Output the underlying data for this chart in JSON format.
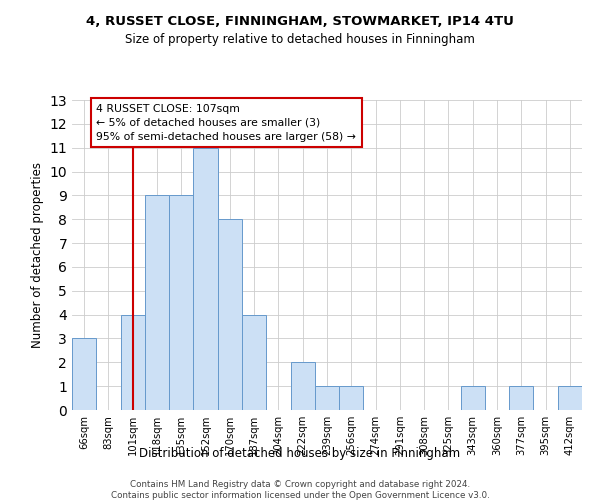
{
  "title1": "4, RUSSET CLOSE, FINNINGHAM, STOWMARKET, IP14 4TU",
  "title2": "Size of property relative to detached houses in Finningham",
  "xlabel": "Distribution of detached houses by size in Finningham",
  "ylabel": "Number of detached properties",
  "categories": [
    "66sqm",
    "83sqm",
    "101sqm",
    "118sqm",
    "135sqm",
    "152sqm",
    "170sqm",
    "187sqm",
    "204sqm",
    "222sqm",
    "239sqm",
    "256sqm",
    "274sqm",
    "291sqm",
    "308sqm",
    "325sqm",
    "343sqm",
    "360sqm",
    "377sqm",
    "395sqm",
    "412sqm"
  ],
  "values": [
    3,
    0,
    4,
    9,
    9,
    11,
    8,
    4,
    0,
    2,
    1,
    1,
    0,
    0,
    0,
    0,
    1,
    0,
    1,
    0,
    1
  ],
  "bar_color": "#cce0f5",
  "bar_edge_color": "#6699cc",
  "red_line_index": 2,
  "annotation_line1": "4 RUSSET CLOSE: 107sqm",
  "annotation_line2": "← 5% of detached houses are smaller (3)",
  "annotation_line3": "95% of semi-detached houses are larger (58) →",
  "annotation_box_color": "#ffffff",
  "annotation_box_edge": "#cc0000",
  "red_line_color": "#cc0000",
  "footer1": "Contains HM Land Registry data © Crown copyright and database right 2024.",
  "footer2": "Contains public sector information licensed under the Open Government Licence v3.0.",
  "ylim": [
    0,
    13
  ],
  "bg_color": "#ffffff",
  "grid_color": "#cccccc"
}
